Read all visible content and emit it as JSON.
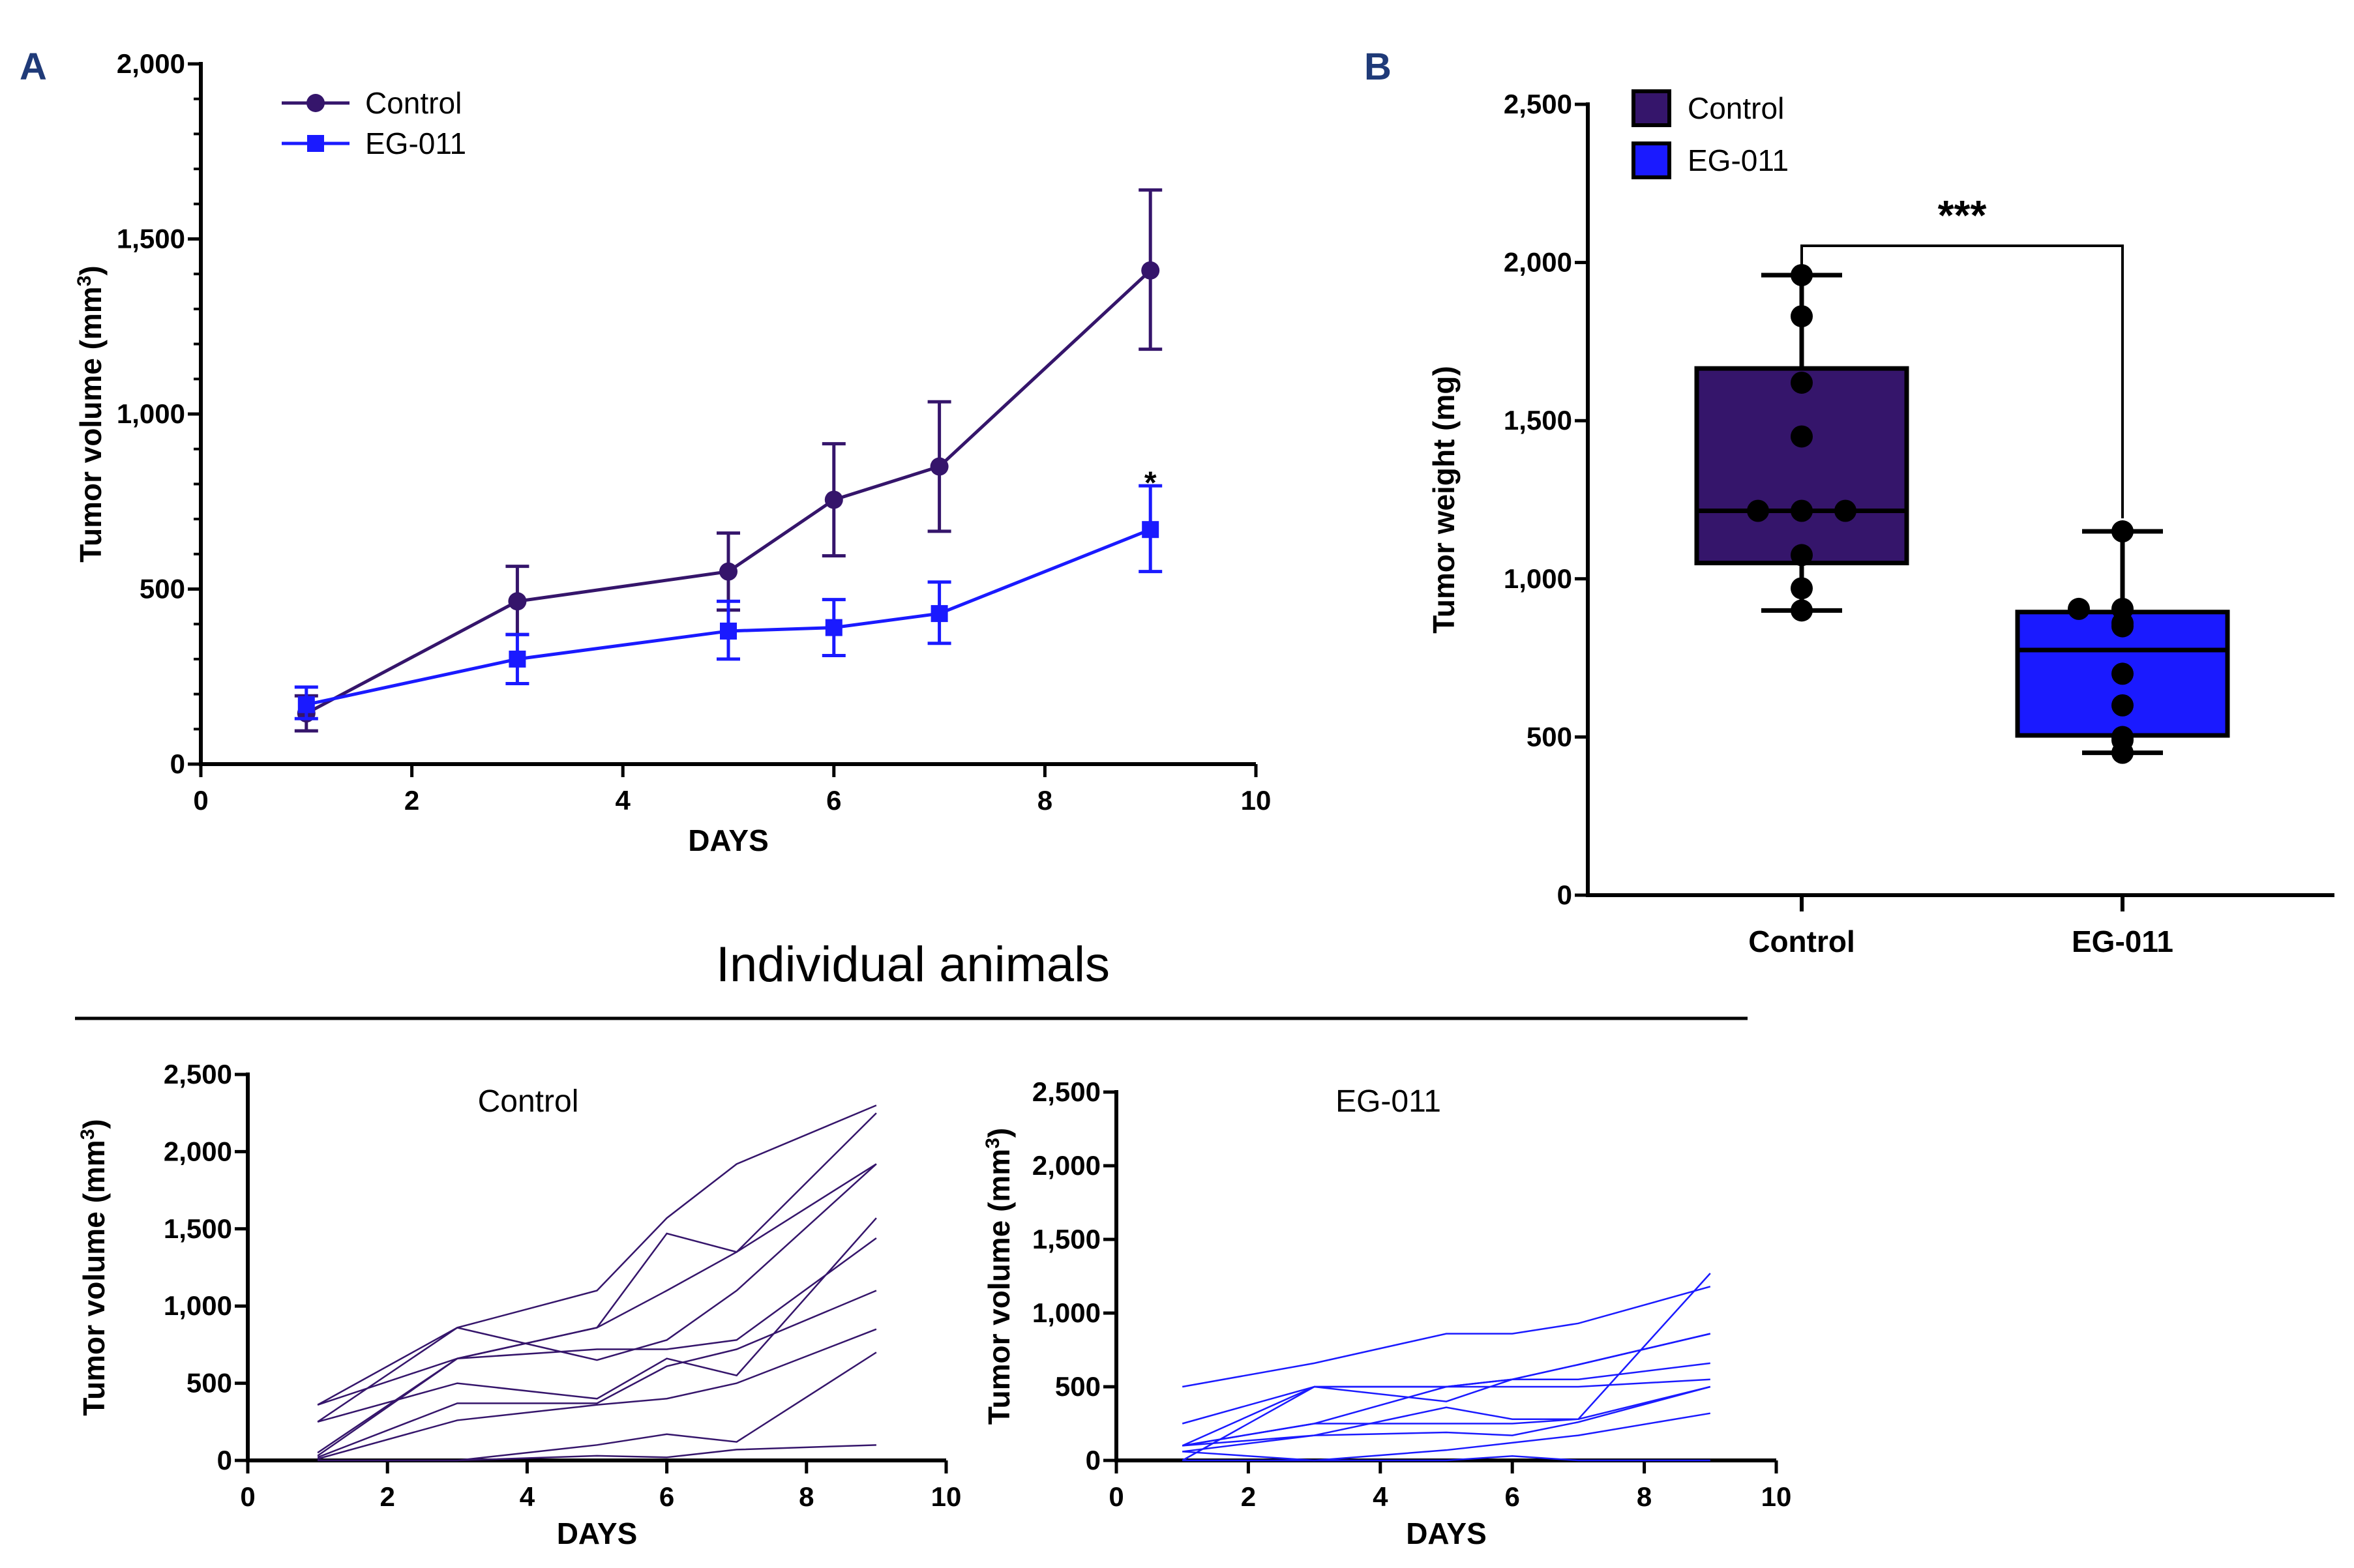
{
  "panel_labels": [
    "A",
    "B"
  ],
  "section_title": "Individual animals",
  "colors": {
    "control": "#35156b",
    "eg011": "#1a1aff",
    "panel_label": "#1f3a78"
  },
  "chart_data": [
    {
      "id": "A",
      "type": "line",
      "xlabel": "DAYS",
      "ylabel": "Tumor volume  (mm3)",
      "xlim": [
        0,
        10
      ],
      "ylim": [
        0,
        2000
      ],
      "xticks": [
        "0",
        "2",
        "4",
        "6",
        "8",
        "10"
      ],
      "yticks": [
        "0",
        "500",
        "1,000",
        "1,500",
        "2,000"
      ],
      "legend": "top-left",
      "x": [
        1,
        3,
        5,
        6,
        7,
        9
      ],
      "series": [
        {
          "name": "Control",
          "marker": "circle",
          "values": [
            145,
            465,
            550,
            755,
            850,
            1410
          ],
          "err_low": [
            95,
            370,
            440,
            595,
            665,
            1185
          ],
          "err_high": [
            195,
            565,
            660,
            915,
            1035,
            1640
          ]
        },
        {
          "name": "EG-011",
          "marker": "square",
          "values": [
            170,
            300,
            380,
            390,
            430,
            670
          ],
          "err_low": [
            130,
            230,
            300,
            310,
            345,
            550
          ],
          "err_high": [
            220,
            370,
            465,
            470,
            520,
            795
          ]
        }
      ],
      "annotations": [
        {
          "text": "*",
          "x": 9,
          "y": 830
        }
      ]
    },
    {
      "id": "B",
      "type": "box",
      "ylabel": "Tumor weight (mg)",
      "ylim": [
        0,
        2500
      ],
      "yticks": [
        "0",
        "500",
        "1,000",
        "1,500",
        "2,000",
        "2,500"
      ],
      "categories": [
        "Control",
        "EG-011"
      ],
      "legend": "top-left",
      "boxes": [
        {
          "name": "Control",
          "min": 900,
          "q1": 1050,
          "median": 1215,
          "q3": 1665,
          "max": 1960,
          "points": [
            1960,
            1830,
            1620,
            1450,
            1215,
            1215,
            1215,
            1075,
            970,
            900
          ]
        },
        {
          "name": "EG-011",
          "min": 450,
          "q1": 505,
          "median": 775,
          "q3": 895,
          "max": 1150,
          "points": [
            1150,
            905,
            905,
            860,
            850,
            700,
            600,
            500,
            490,
            450
          ]
        }
      ],
      "significance": "***"
    },
    {
      "id": "individual-control",
      "type": "line",
      "title": "Control",
      "xlabel": "DAYS",
      "ylabel": "Tumor volume  (mm3)",
      "xlim": [
        0,
        10
      ],
      "ylim": [
        0,
        2500
      ],
      "xticks": [
        "0",
        "2",
        "4",
        "6",
        "8",
        "10"
      ],
      "yticks": [
        "0",
        "500",
        "1,000",
        "1,500",
        "2,000",
        "2,500"
      ],
      "x": [
        1,
        3,
        5,
        6,
        7,
        9
      ],
      "series": [
        {
          "values": [
            360,
            860,
            1100,
            1570,
            1920,
            2300
          ]
        },
        {
          "values": [
            50,
            660,
            860,
            1470,
            1350,
            2250
          ]
        },
        {
          "values": [
            360,
            660,
            860,
            1100,
            1350,
            1920
          ]
        },
        {
          "values": [
            250,
            860,
            650,
            780,
            1100,
            1920
          ]
        },
        {
          "values": [
            250,
            500,
            400,
            660,
            550,
            1570
          ]
        },
        {
          "values": [
            30,
            660,
            720,
            720,
            780,
            1440
          ]
        },
        {
          "values": [
            20,
            370,
            370,
            610,
            720,
            1100
          ]
        },
        {
          "values": [
            10,
            260,
            360,
            400,
            500,
            850
          ]
        },
        {
          "values": [
            0,
            0,
            100,
            170,
            120,
            700
          ]
        },
        {
          "values": [
            0,
            0,
            30,
            20,
            70,
            100
          ]
        }
      ]
    },
    {
      "id": "individual-eg011",
      "type": "line",
      "title": "EG-011",
      "xlabel": "DAYS",
      "ylabel": "Tumor volume  (mm3)",
      "xlim": [
        0,
        10
      ],
      "ylim": [
        0,
        2500
      ],
      "xticks": [
        "0",
        "2",
        "4",
        "6",
        "8",
        "10"
      ],
      "yticks": [
        "0",
        "500",
        "1,000",
        "1,500",
        "2,000",
        "2,500"
      ],
      "x": [
        1,
        3,
        5,
        6,
        7,
        9
      ],
      "series": [
        {
          "values": [
            500,
            660,
            860,
            860,
            930,
            1180
          ]
        },
        {
          "values": [
            250,
            500,
            400,
            550,
            650,
            860
          ]
        },
        {
          "values": [
            100,
            250,
            500,
            550,
            650,
            860
          ]
        },
        {
          "values": [
            100,
            500,
            500,
            500,
            500,
            550
          ]
        },
        {
          "values": [
            100,
            250,
            250,
            250,
            280,
            1270
          ]
        },
        {
          "values": [
            60,
            170,
            360,
            280,
            280,
            500
          ]
        },
        {
          "values": [
            100,
            170,
            190,
            170,
            260,
            500
          ]
        },
        {
          "values": [
            60,
            0,
            70,
            120,
            170,
            320
          ]
        },
        {
          "values": [
            0,
            0,
            0,
            30,
            0,
            0
          ]
        },
        {
          "values": [
            0,
            500,
            500,
            550,
            550,
            660
          ]
        }
      ]
    }
  ]
}
